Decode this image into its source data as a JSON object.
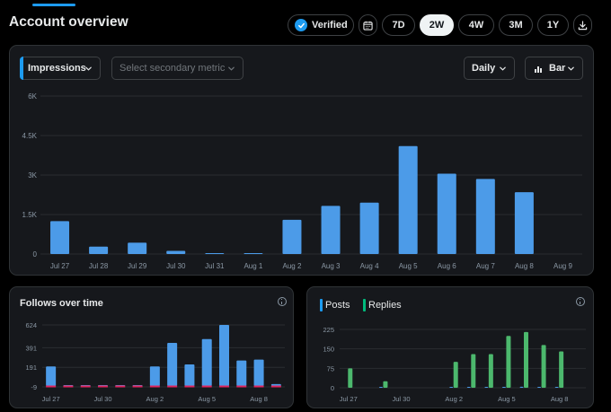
{
  "page": {
    "title": "Account overview",
    "verified_label": "Verified",
    "ranges": [
      {
        "label": "7D",
        "active": false
      },
      {
        "label": "2W",
        "active": true
      },
      {
        "label": "4W",
        "active": false
      },
      {
        "label": "3M",
        "active": false
      },
      {
        "label": "1Y",
        "active": false
      }
    ]
  },
  "main_chart": {
    "primary_metric": "Impressions",
    "secondary_placeholder": "Select secondary metric",
    "interval": "Daily",
    "chart_type_label": "Bar"
  },
  "follows_card": {
    "title": "Follows over time"
  },
  "posts_card": {
    "legend_posts": "Posts",
    "legend_replies": "Replies"
  },
  "colors": {
    "blue": "#4c9be8",
    "green": "#4cb86d",
    "red": "#e0245e"
  },
  "chart_data": [
    {
      "id": "impressions",
      "type": "bar",
      "categories": [
        "Jul 27",
        "Jul 28",
        "Jul 29",
        "Jul 30",
        "Jul 31",
        "Aug 1",
        "Aug 2",
        "Aug 3",
        "Aug 4",
        "Aug 5",
        "Aug 6",
        "Aug 7",
        "Aug 8",
        "Aug 9"
      ],
      "series": [
        {
          "values": [
            1250,
            280,
            430,
            120,
            30,
            30,
            1300,
            1830,
            1950,
            4100,
            3050,
            2850,
            2350,
            0
          ]
        }
      ],
      "yticks": [
        0,
        1500,
        3000,
        4500,
        6000
      ],
      "ytick_labels": [
        "0",
        "1.5K",
        "3K",
        "4.5K",
        "6K"
      ],
      "ylim": [
        0,
        6000
      ],
      "grid": true
    },
    {
      "id": "follows",
      "type": "bar",
      "categories": [
        "Jul 27",
        "Jul 28",
        "Jul 29",
        "Jul 30",
        "Jul 31",
        "Aug 1",
        "Aug 2",
        "Aug 3",
        "Aug 4",
        "Aug 5",
        "Aug 6",
        "Aug 7",
        "Aug 8",
        "Aug 9"
      ],
      "xtick_labels": [
        "Jul 27",
        "Jul 30",
        "Aug 2",
        "Aug 5",
        "Aug 8"
      ],
      "series": [
        {
          "values": [
            200,
            5,
            8,
            3,
            2,
            2,
            200,
            440,
            220,
            480,
            624,
            260,
            270,
            20
          ]
        },
        {
          "values": [
            -9,
            -9,
            -9,
            -9,
            -9,
            -9,
            -9,
            -9,
            -9,
            -9,
            -9,
            -9,
            -9,
            -9
          ]
        }
      ],
      "yticks": [
        -9,
        191,
        391,
        624
      ],
      "ytick_labels": [
        "-9",
        "191",
        "391",
        "624"
      ],
      "ylim": [
        -9,
        624
      ],
      "grid": true
    },
    {
      "id": "posts_replies",
      "type": "bar",
      "categories": [
        "Jul 27",
        "Jul 28",
        "Jul 29",
        "Jul 30",
        "Jul 31",
        "Aug 1",
        "Aug 2",
        "Aug 3",
        "Aug 4",
        "Aug 5",
        "Aug 6",
        "Aug 7",
        "Aug 8",
        "Aug 9"
      ],
      "xtick_labels": [
        "Jul 27",
        "Jul 30",
        "Aug 2",
        "Aug 5",
        "Aug 8"
      ],
      "series": [
        {
          "name": "Posts",
          "values": [
            0,
            0,
            2,
            0,
            0,
            0,
            2,
            2,
            2,
            2,
            4,
            2,
            3,
            0
          ]
        },
        {
          "name": "Replies",
          "values": [
            75,
            0,
            25,
            0,
            0,
            0,
            100,
            130,
            130,
            200,
            215,
            165,
            140,
            0
          ]
        }
      ],
      "yticks": [
        0,
        75,
        150,
        225
      ],
      "ytick_labels": [
        "0",
        "75",
        "150",
        "225"
      ],
      "ylim": [
        0,
        225
      ],
      "grid": true
    }
  ]
}
